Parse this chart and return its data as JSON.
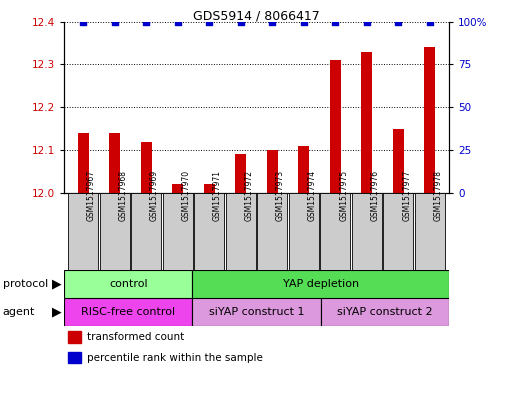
{
  "title": "GDS5914 / 8066417",
  "samples": [
    "GSM1517967",
    "GSM1517968",
    "GSM1517969",
    "GSM1517970",
    "GSM1517971",
    "GSM1517972",
    "GSM1517973",
    "GSM1517974",
    "GSM1517975",
    "GSM1517976",
    "GSM1517977",
    "GSM1517978"
  ],
  "transformed_counts": [
    12.14,
    12.14,
    12.12,
    12.02,
    12.02,
    12.09,
    12.1,
    12.11,
    12.31,
    12.33,
    12.15,
    12.34
  ],
  "percentile_ranks": [
    100,
    100,
    100,
    100,
    100,
    100,
    100,
    100,
    100,
    100,
    100,
    100
  ],
  "ylim_left": [
    12.0,
    12.4
  ],
  "ylim_right": [
    0,
    100
  ],
  "yticks_left": [
    12.0,
    12.1,
    12.2,
    12.3,
    12.4
  ],
  "yticks_right": [
    0,
    25,
    50,
    75,
    100
  ],
  "bar_color": "#cc0000",
  "dot_color": "#0000cc",
  "protocol_groups": [
    {
      "label": "control",
      "start": 0,
      "end": 3,
      "color": "#99ff99"
    },
    {
      "label": "YAP depletion",
      "start": 4,
      "end": 11,
      "color": "#55dd55"
    }
  ],
  "agent_groups": [
    {
      "label": "RISC-free control",
      "start": 0,
      "end": 3,
      "color": "#ee44ee"
    },
    {
      "label": "siYAP construct 1",
      "start": 4,
      "end": 7,
      "color": "#dd99dd"
    },
    {
      "label": "siYAP construct 2",
      "start": 8,
      "end": 11,
      "color": "#dd99dd"
    }
  ],
  "legend_items": [
    {
      "label": "transformed count",
      "color": "#cc0000"
    },
    {
      "label": "percentile rank within the sample",
      "color": "#0000cc"
    }
  ],
  "background_color": "#ffffff",
  "sample_box_color": "#cccccc"
}
